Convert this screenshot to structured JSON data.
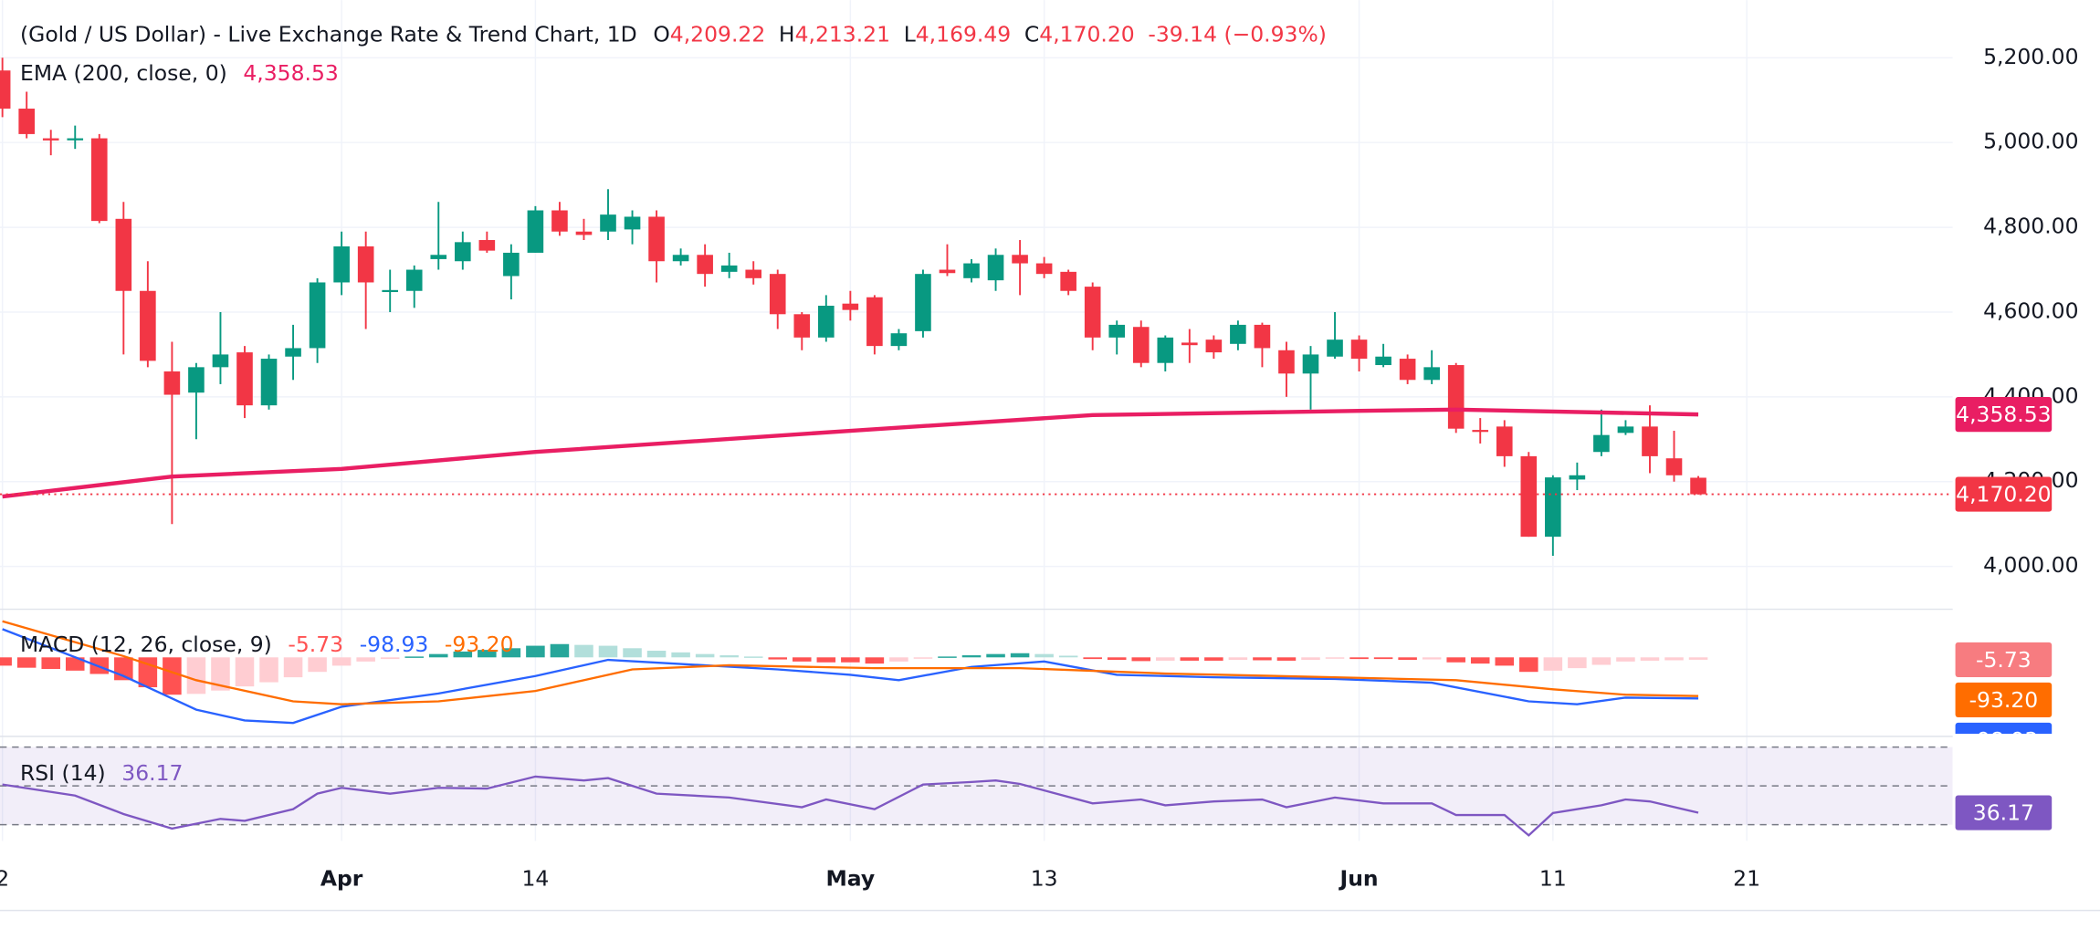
{
  "header": {
    "title": "(Gold / US Dollar) - Live Exchange Rate & Trend Chart, 1D",
    "ohlc": [
      {
        "key": "O",
        "value": "4,209.22"
      },
      {
        "key": "H",
        "value": "4,213.21"
      },
      {
        "key": "L",
        "value": "4,169.49"
      },
      {
        "key": "C",
        "value": "4,170.20"
      }
    ],
    "change": "-39.14 (−0.93%)"
  },
  "chart_data": [
    {
      "type": "candlestick",
      "x": [
        0,
        1,
        2,
        3,
        4,
        5,
        6,
        7,
        8,
        9,
        10,
        11,
        12,
        13,
        14,
        15,
        16,
        17,
        18,
        19,
        20,
        21,
        22,
        23,
        24,
        25,
        26,
        27,
        28,
        29,
        30,
        31,
        32,
        33,
        34,
        35,
        36,
        37,
        38,
        39,
        40,
        41,
        42,
        43,
        44,
        45,
        46,
        47,
        48,
        49,
        50,
        51,
        52,
        53,
        54,
        55,
        56,
        57,
        58,
        59,
        60,
        61,
        62,
        63,
        64,
        65,
        66,
        67,
        68,
        69,
        70
      ],
      "open": [
        5170,
        5080,
        5010,
        5010,
        5010,
        4820,
        4650,
        4460,
        4410,
        4470,
        4505,
        4380,
        4495,
        4515,
        4670,
        4755,
        4650,
        4650,
        4725,
        4720,
        4770,
        4685,
        4740,
        4840,
        4790,
        4790,
        4795,
        4825,
        4720,
        4735,
        4695,
        4700,
        4690,
        4595,
        4540,
        4620,
        4635,
        4520,
        4555,
        4700,
        4680,
        4675,
        4735,
        4715,
        4695,
        4660,
        4540,
        4565,
        4480,
        4528,
        4535,
        4525,
        4570,
        4510,
        4455,
        4495,
        4535,
        4475,
        4490,
        4440,
        4475,
        4322,
        4330,
        4260,
        4070,
        4205,
        4270,
        4315,
        4330,
        4255,
        4209.22
      ],
      "high": [
        5200,
        5120,
        5030,
        5040,
        5020,
        4860,
        4720,
        4530,
        4480,
        4600,
        4520,
        4500,
        4570,
        4680,
        4790,
        4790,
        4700,
        4710,
        4860,
        4790,
        4790,
        4760,
        4850,
        4860,
        4820,
        4890,
        4840,
        4840,
        4750,
        4760,
        4740,
        4720,
        4700,
        4600,
        4640,
        4650,
        4640,
        4560,
        4700,
        4760,
        4725,
        4750,
        4770,
        4730,
        4700,
        4670,
        4580,
        4580,
        4545,
        4560,
        4545,
        4580,
        4575,
        4530,
        4520,
        4600,
        4545,
        4525,
        4500,
        4510,
        4480,
        4350,
        4345,
        4270,
        4215,
        4245,
        4370,
        4345,
        4380,
        4320,
        4213.21
      ],
      "low": [
        5060,
        5010,
        4970,
        4985,
        4810,
        4500,
        4470,
        4100,
        4300,
        4430,
        4350,
        4370,
        4440,
        4480,
        4640,
        4560,
        4600,
        4610,
        4700,
        4700,
        4740,
        4630,
        4740,
        4780,
        4770,
        4770,
        4760,
        4670,
        4710,
        4660,
        4680,
        4665,
        4560,
        4510,
        4530,
        4580,
        4500,
        4510,
        4540,
        4685,
        4670,
        4650,
        4640,
        4680,
        4640,
        4510,
        4500,
        4470,
        4460,
        4480,
        4490,
        4510,
        4470,
        4400,
        4370,
        4490,
        4460,
        4470,
        4430,
        4430,
        4315,
        4290,
        4235,
        4070,
        4025,
        4180,
        4260,
        4310,
        4220,
        4200,
        4169.49
      ],
      "close": [
        5080,
        5020,
        5005,
        5010,
        4815,
        4650,
        4485,
        4405,
        4470,
        4500,
        4380,
        4490,
        4515,
        4670,
        4755,
        4670,
        4652,
        4700,
        4735,
        4765,
        4745,
        4740,
        4840,
        4790,
        4782,
        4830,
        4825,
        4720,
        4735,
        4690,
        4710,
        4680,
        4595,
        4540,
        4615,
        4605,
        4520,
        4550,
        4690,
        4692,
        4715,
        4735,
        4715,
        4690,
        4650,
        4540,
        4570,
        4480,
        4540,
        4522,
        4505,
        4570,
        4515,
        4455,
        4500,
        4535,
        4490,
        4495,
        4440,
        4470,
        4325,
        4318,
        4260,
        4070,
        4210,
        4215,
        4310,
        4330,
        4260,
        4215,
        4170.2
      ],
      "up_color": "#089981",
      "down_color": "#f23645",
      "xlim": [
        -0.1,
        80.5
      ],
      "xticks": [
        {
          "value": 0,
          "label": "2"
        },
        {
          "value": 14,
          "label": "Apr"
        },
        {
          "value": 22,
          "label": "14"
        },
        {
          "value": 35,
          "label": "May"
        },
        {
          "value": 43,
          "label": "13"
        },
        {
          "value": 56,
          "label": "Jun"
        },
        {
          "value": 64,
          "label": "11"
        },
        {
          "value": 72,
          "label": "21"
        }
      ],
      "ylim": [
        3899,
        5336
      ],
      "yticks": [
        {
          "value": 5200,
          "label": "5,200.00"
        },
        {
          "value": 5000,
          "label": "5,000.00"
        },
        {
          "value": 4800,
          "label": "4,800.00"
        },
        {
          "value": 4600,
          "label": "4,600.00"
        },
        {
          "value": 4400,
          "label": "4,400.00"
        },
        {
          "value": 4200,
          "label": "4,200.00"
        },
        {
          "value": 4000,
          "label": "4,000.00"
        }
      ],
      "grid": true,
      "overlays": [
        {
          "name": "EMA (200, close, 0)",
          "value_label": "4,358.53",
          "color": "#e91e63",
          "x": [
            0,
            7,
            14,
            22,
            35,
            45,
            56,
            60,
            70
          ],
          "values": [
            4165,
            4212,
            4230,
            4270,
            4320,
            4357,
            4367,
            4370,
            4358.53
          ]
        }
      ]
    },
    {
      "type": "macd",
      "title": "MACD (12, 26, close, 9)",
      "ylim": [
        -184,
        116
      ],
      "histogram": {
        "value_label": "-5.73",
        "rise_pos": "#26a69a",
        "fall_pos": "#b2dfdb",
        "fall_neg": "#ff5252",
        "rise_neg": "#ffcdd2",
        "label_color": "#f77c80",
        "values": [
          -20,
          -25,
          -28,
          -32,
          -40,
          -55,
          -72,
          -90,
          -88,
          -80,
          -70,
          -60,
          -48,
          -35,
          -20,
          -10,
          -4,
          2,
          8,
          14,
          18,
          22,
          28,
          32,
          30,
          28,
          22,
          16,
          12,
          8,
          5,
          2,
          -5,
          -10,
          -12,
          -12,
          -15,
          -10,
          -3,
          2,
          5,
          8,
          10,
          8,
          4,
          -4,
          -6,
          -9,
          -8,
          -8,
          -8,
          -6,
          -7,
          -8,
          -6,
          -3,
          -4,
          -4,
          -6,
          -5,
          -12,
          -15,
          -20,
          -35,
          -32,
          -26,
          -18,
          -10,
          -8,
          -7,
          -5.73
        ]
      },
      "series": [
        {
          "color": "#2962ff",
          "value_label": "-98.93",
          "x": [
            0,
            5,
            8,
            10,
            12,
            14,
            18,
            22,
            25,
            28,
            32,
            35,
            37,
            40,
            43,
            46,
            50,
            55,
            59,
            63,
            65,
            67,
            70
          ],
          "values": [
            68,
            -45,
            -126,
            -152,
            -158,
            -119,
            -87,
            -45,
            -6,
            -16,
            -29,
            -42,
            -55,
            -23,
            -10,
            -42,
            -48,
            -52,
            -61,
            -106,
            -113,
            -97,
            -98.93
          ]
        },
        {
          "color": "#ff6d00",
          "value_label": "-93.20",
          "x": [
            0,
            5,
            8,
            12,
            14,
            18,
            22,
            26,
            30,
            36,
            42,
            48,
            55,
            60,
            64,
            67,
            70
          ],
          "values": [
            87,
            3,
            -55,
            -106,
            -113,
            -106,
            -81,
            -29,
            -19,
            -26,
            -26,
            -39,
            -48,
            -55,
            -77,
            -90,
            -93.2
          ]
        }
      ]
    },
    {
      "type": "line",
      "title": "RSI (14)",
      "ylim": [
        21.7,
        75.5
      ],
      "bands": [
        70,
        50,
        30
      ],
      "band_fill": "#7e57c2",
      "series": [
        {
          "color": "#7e57c2",
          "value_label": "36.17",
          "x": [
            0,
            3,
            5,
            7,
            9,
            10,
            12,
            13,
            14,
            16,
            18,
            20,
            22,
            24,
            25,
            27,
            30,
            33,
            34,
            36,
            38,
            40,
            41,
            42,
            45,
            47,
            48,
            50,
            52,
            53,
            55,
            57,
            59,
            60,
            62,
            63,
            64,
            66,
            67,
            68,
            70
          ],
          "values": [
            50.7,
            45,
            35.5,
            28,
            33,
            32,
            38,
            46,
            49,
            46,
            49,
            48.6,
            54.8,
            52.8,
            54,
            46,
            44,
            39,
            43,
            38,
            50.7,
            52,
            52.8,
            51,
            41,
            43,
            40,
            42,
            43,
            39,
            44,
            41,
            41,
            35,
            35,
            24.5,
            36,
            40,
            43,
            42,
            36.17
          ]
        }
      ]
    }
  ]
}
